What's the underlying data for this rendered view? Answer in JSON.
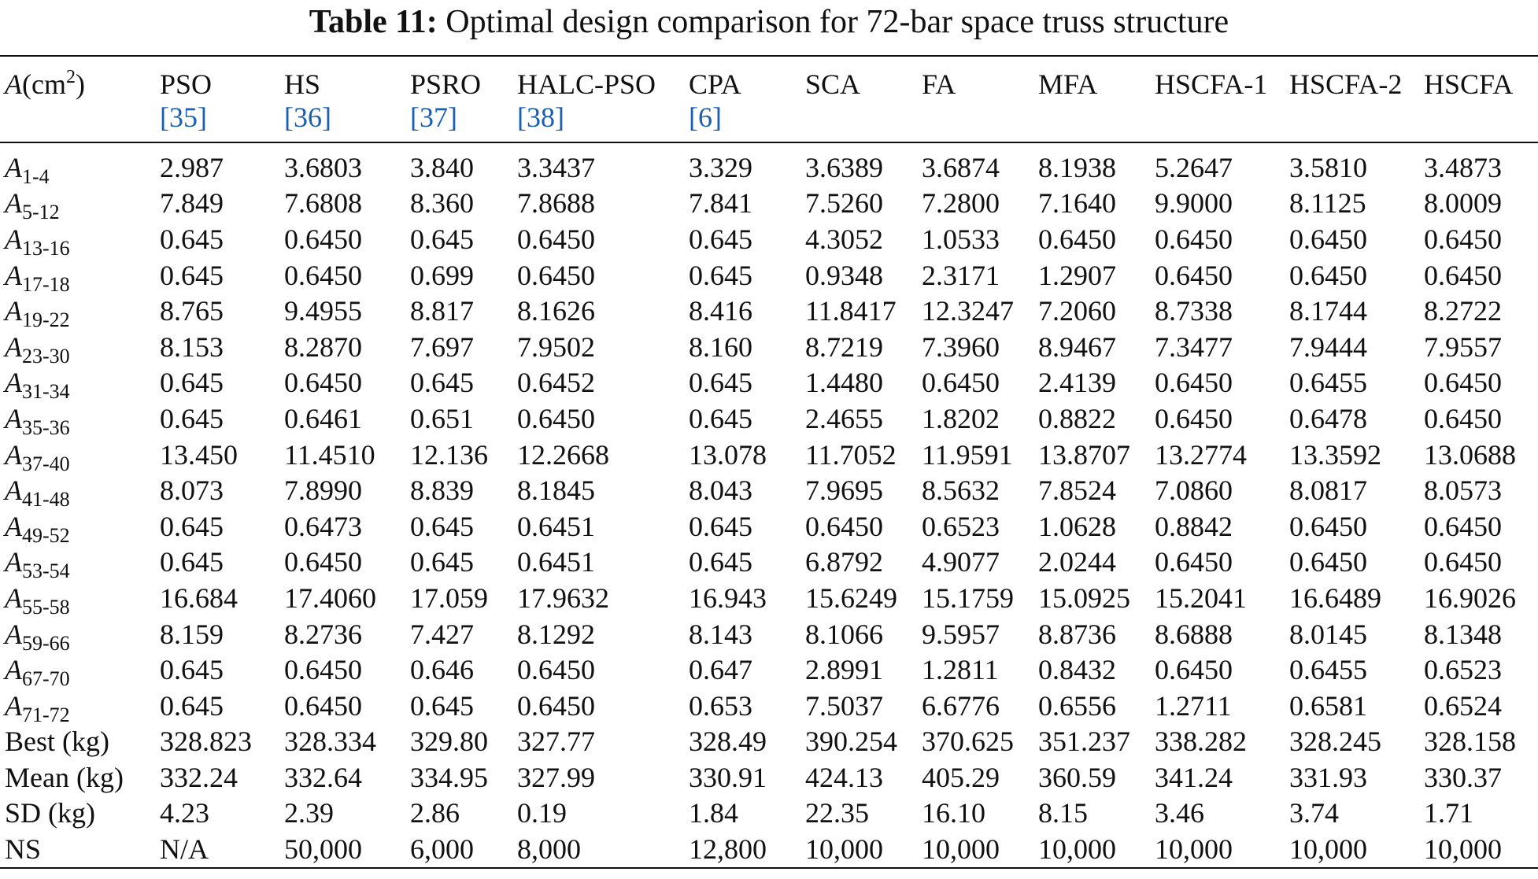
{
  "caption": {
    "label": "Table 11:",
    "text": "Optimal design comparison for 72-bar space truss structure"
  },
  "header": {
    "first": {
      "var": "A",
      "unit_pre": "(cm",
      "sup": "2",
      "unit_post": ")"
    },
    "methods": [
      {
        "name": "PSO",
        "ref_open": "[",
        "ref": "35",
        "ref_close": "]"
      },
      {
        "name": "HS",
        "ref_open": "[",
        "ref": "36",
        "ref_close": "]"
      },
      {
        "name": "PSRO",
        "ref_open": "[",
        "ref": "37",
        "ref_close": "]"
      },
      {
        "name": "HALC-PSO",
        "ref_open": "[",
        "ref": "38",
        "ref_close": "]"
      },
      {
        "name": "CPA",
        "ref_open": "[",
        "ref": "6",
        "ref_close": "]"
      },
      {
        "name": "SCA"
      },
      {
        "name": "FA"
      },
      {
        "name": "MFA"
      },
      {
        "name": "HSCFA-1"
      },
      {
        "name": "HSCFA-2"
      },
      {
        "name": "HSCFA"
      }
    ]
  },
  "rows": [
    {
      "var": "A",
      "sub": "1-4",
      "values": [
        "2.987",
        "3.6803",
        "3.840",
        "3.3437",
        "3.329",
        "3.6389",
        "3.6874",
        "8.1938",
        "5.2647",
        "3.5810",
        "3.4873"
      ]
    },
    {
      "var": "A",
      "sub": "5-12",
      "values": [
        "7.849",
        "7.6808",
        "8.360",
        "7.8688",
        "7.841",
        "7.5260",
        "7.2800",
        "7.1640",
        "9.9000",
        "8.1125",
        "8.0009"
      ]
    },
    {
      "var": "A",
      "sub": "13-16",
      "values": [
        "0.645",
        "0.6450",
        "0.645",
        "0.6450",
        "0.645",
        "4.3052",
        "1.0533",
        "0.6450",
        "0.6450",
        "0.6450",
        "0.6450"
      ]
    },
    {
      "var": "A",
      "sub": "17-18",
      "values": [
        "0.645",
        "0.6450",
        "0.699",
        "0.6450",
        "0.645",
        "0.9348",
        "2.3171",
        "1.2907",
        "0.6450",
        "0.6450",
        "0.6450"
      ]
    },
    {
      "var": "A",
      "sub": "19-22",
      "values": [
        "8.765",
        "9.4955",
        "8.817",
        "8.1626",
        "8.416",
        "11.8417",
        "12.3247",
        "7.2060",
        "8.7338",
        "8.1744",
        "8.2722"
      ]
    },
    {
      "var": "A",
      "sub": "23-30",
      "values": [
        "8.153",
        "8.2870",
        "7.697",
        "7.9502",
        "8.160",
        "8.7219",
        "7.3960",
        "8.9467",
        "7.3477",
        "7.9444",
        "7.9557"
      ]
    },
    {
      "var": "A",
      "sub": "31-34",
      "values": [
        "0.645",
        "0.6450",
        "0.645",
        "0.6452",
        "0.645",
        "1.4480",
        "0.6450",
        "2.4139",
        "0.6450",
        "0.6455",
        "0.6450"
      ]
    },
    {
      "var": "A",
      "sub": "35-36",
      "values": [
        "0.645",
        "0.6461",
        "0.651",
        "0.6450",
        "0.645",
        "2.4655",
        "1.8202",
        "0.8822",
        "0.6450",
        "0.6478",
        "0.6450"
      ]
    },
    {
      "var": "A",
      "sub": "37-40",
      "values": [
        "13.450",
        "11.4510",
        "12.136",
        "12.2668",
        "13.078",
        "11.7052",
        "11.9591",
        "13.8707",
        "13.2774",
        "13.3592",
        "13.0688"
      ]
    },
    {
      "var": "A",
      "sub": "41-48",
      "values": [
        "8.073",
        "7.8990",
        "8.839",
        "8.1845",
        "8.043",
        "7.9695",
        "8.5632",
        "7.8524",
        "7.0860",
        "8.0817",
        "8.0573"
      ]
    },
    {
      "var": "A",
      "sub": "49-52",
      "values": [
        "0.645",
        "0.6473",
        "0.645",
        "0.6451",
        "0.645",
        "0.6450",
        "0.6523",
        "1.0628",
        "0.8842",
        "0.6450",
        "0.6450"
      ]
    },
    {
      "var": "A",
      "sub": "53-54",
      "values": [
        "0.645",
        "0.6450",
        "0.645",
        "0.6451",
        "0.645",
        "6.8792",
        "4.9077",
        "2.0244",
        "0.6450",
        "0.6450",
        "0.6450"
      ]
    },
    {
      "var": "A",
      "sub": "55-58",
      "values": [
        "16.684",
        "17.4060",
        "17.059",
        "17.9632",
        "16.943",
        "15.6249",
        "15.1759",
        "15.0925",
        "15.2041",
        "16.6489",
        "16.9026"
      ]
    },
    {
      "var": "A",
      "sub": "59-66",
      "values": [
        "8.159",
        "8.2736",
        "7.427",
        "8.1292",
        "8.143",
        "8.1066",
        "9.5957",
        "8.8736",
        "8.6888",
        "8.0145",
        "8.1348"
      ]
    },
    {
      "var": "A",
      "sub": "67-70",
      "values": [
        "0.645",
        "0.6450",
        "0.646",
        "0.6450",
        "0.647",
        "2.8991",
        "1.2811",
        "0.8432",
        "0.6450",
        "0.6455",
        "0.6523"
      ]
    },
    {
      "var": "A",
      "sub": "71-72",
      "values": [
        "0.645",
        "0.6450",
        "0.645",
        "0.6450",
        "0.653",
        "7.5037",
        "6.6776",
        "0.6556",
        "1.2711",
        "0.6581",
        "0.6524"
      ]
    },
    {
      "label": "Best (kg)",
      "values": [
        "328.823",
        "328.334",
        "329.80",
        "327.77",
        "328.49",
        "390.254",
        "370.625",
        "351.237",
        "338.282",
        "328.245",
        "328.158"
      ]
    },
    {
      "label": "Mean (kg)",
      "values": [
        "332.24",
        "332.64",
        "334.95",
        "327.99",
        "330.91",
        "424.13",
        "405.29",
        "360.59",
        "341.24",
        "331.93",
        "330.37"
      ]
    },
    {
      "label": "SD (kg)",
      "values": [
        "4.23",
        "2.39",
        "2.86",
        "0.19",
        "1.84",
        "22.35",
        "16.10",
        "8.15",
        "3.46",
        "3.74",
        "1.71"
      ]
    },
    {
      "label": "NS",
      "values": [
        "N/A",
        "50,000",
        "6,000",
        "8,000",
        "12,800",
        "10,000",
        "10,000",
        "10,000",
        "10,000",
        "10,000",
        "10,000"
      ]
    }
  ],
  "colors": {
    "text": "#111111",
    "link": "#1a5fb4",
    "rule": "#111111"
  }
}
